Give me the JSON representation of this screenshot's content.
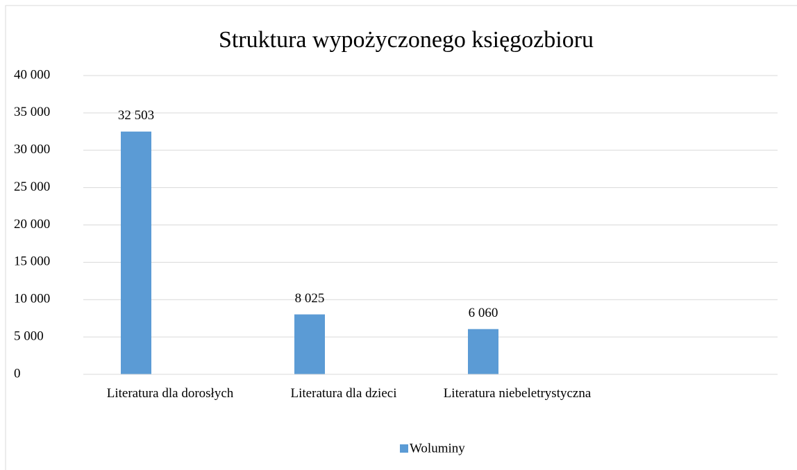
{
  "chart_data": {
    "type": "bar",
    "title": "Struktura wypożyczonego księgozbioru",
    "categories": [
      "Literatura dla dorosłych",
      "Literatura dla dzieci",
      "Literatura niebeletrystyczna",
      null
    ],
    "series": [
      {
        "name": "Woluminy",
        "color": "#5b9bd5",
        "values": [
          32503,
          8025,
          6060,
          null
        ],
        "value_labels": [
          "32 503",
          "8 025",
          "6 060",
          null
        ]
      }
    ],
    "ylim": [
      0,
      40000
    ],
    "yticks": [
      0,
      {
        "value": 5000,
        "label": "5 000"
      },
      {
        "value": 10000,
        "label": "10 000"
      },
      {
        "value": 15000,
        "label": "15 000"
      },
      {
        "value": 20000,
        "label": "20 000"
      },
      {
        "value": 25000,
        "label": "25 000"
      },
      {
        "value": 30000,
        "label": "30 000"
      },
      {
        "value": 35000,
        "label": "35 000"
      },
      {
        "value": 40000,
        "label": "40 000"
      }
    ],
    "grid": true,
    "legend": "bottom"
  }
}
